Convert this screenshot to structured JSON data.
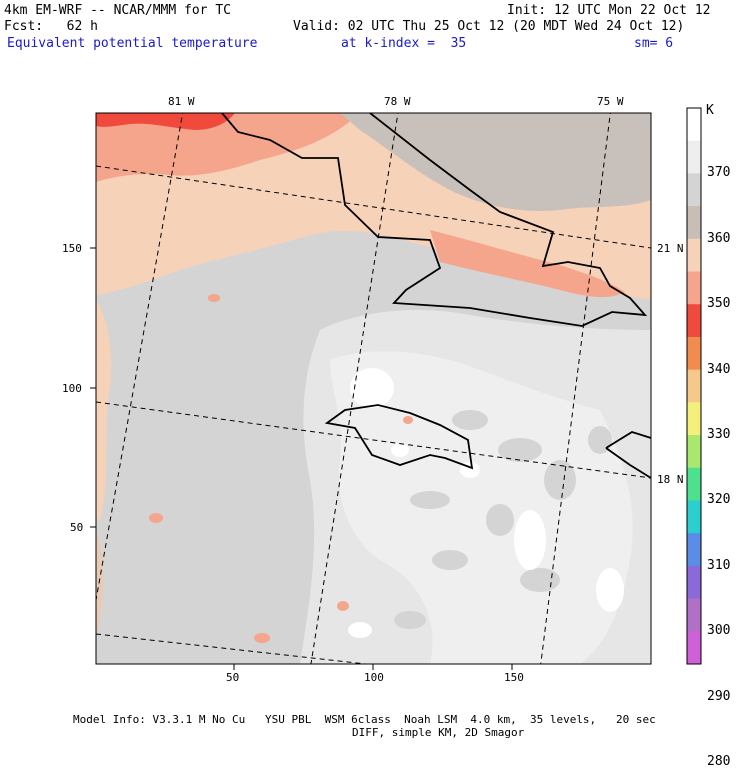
{
  "header": {
    "model": "4km EM-WRF -- NCAR/MMM for TC",
    "init": "Init: 12 UTC Mon 22 Oct 12",
    "forecast": "Fcst:   62 h",
    "valid": "Valid: 02 UTC Thu 25 Oct 12 (20 MDT Wed 24 Oct 12)",
    "field": "Equivalent potential temperature",
    "level": "at k-index =  35",
    "smoothing": "sm= 6"
  },
  "axes": {
    "x_ticks": [
      "50",
      "100",
      "150"
    ],
    "y_ticks": [
      "150",
      "100",
      "50"
    ],
    "lon_labels": [
      "81 W",
      "78 W",
      "75 W"
    ],
    "lat_labels": [
      "21 N",
      "18 N"
    ]
  },
  "colorbar": {
    "unit": "K",
    "levels": [
      "370",
      "360",
      "350",
      "340",
      "330",
      "320",
      "310",
      "300",
      "290",
      "280"
    ],
    "colors": [
      "#ffffff",
      "#eeeeee",
      "#d4d4d4",
      "#c8beb6",
      "#f5d2b8",
      "#f5a58c",
      "#f04a3c",
      "#f28c4e",
      "#f6c88a",
      "#f5f07a",
      "#a8e86e",
      "#4ee08e",
      "#2ccfcf",
      "#5a8ce8",
      "#8a6ad8",
      "#b070c8",
      "#d060d8"
    ]
  },
  "footer": {
    "line1": "Model Info: V3.3.1 M No Cu   YSU PBL  WSM 6class  Noah LSM  4.0 km,  35 levels,   20 sec",
    "line2": "DIFF, simple KM, 2D Smagor"
  }
}
